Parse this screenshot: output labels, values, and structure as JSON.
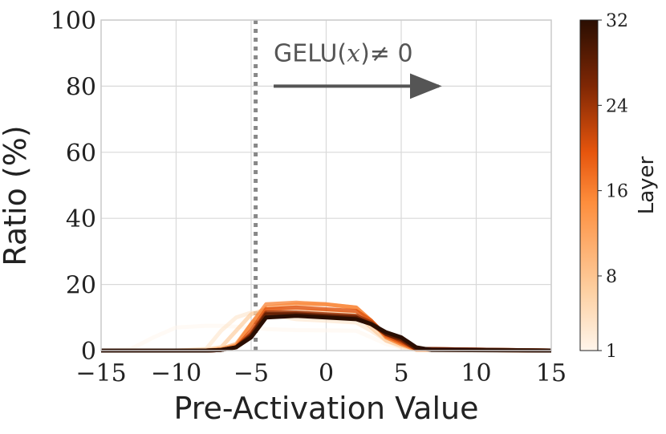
{
  "chart_data": {
    "type": "line",
    "xlabel": "Pre-Activation Value",
    "ylabel": "Ratio (%)",
    "xlim": [
      -15,
      15
    ],
    "ylim": [
      0,
      100
    ],
    "xticks": [
      -15,
      -10,
      -5,
      0,
      5,
      10,
      15
    ],
    "xtick_labels": [
      "−15",
      "−10",
      "−5",
      "0",
      "5",
      "10",
      "15"
    ],
    "yticks": [
      0,
      20,
      40,
      60,
      80,
      100
    ],
    "ytick_labels": [
      "0",
      "20",
      "40",
      "60",
      "80",
      "100"
    ],
    "grid": true,
    "threshold_line": {
      "x": -4.7,
      "style": "dotted",
      "color": "#888888"
    },
    "annotation": {
      "label_text": "GELU(",
      "label_var": "x",
      "label_rest": ")≠ 0",
      "arrow_from_x": -3.5,
      "arrow_to_x": 7.5,
      "arrow_y": 80,
      "color": "#555555"
    },
    "colorbar": {
      "label": "Layer",
      "min": 1,
      "max": 32,
      "ticks": [
        1,
        8,
        16,
        24,
        32
      ],
      "tick_labels": [
        "1",
        "8",
        "16",
        "24",
        "32"
      ],
      "colormap": "Oranges-to-dark",
      "color_stops": [
        "#fff5eb",
        "#fdd0a2",
        "#fd8d3c",
        "#e6550d",
        "#7f2704",
        "#2a0e02"
      ]
    },
    "series": [
      {
        "layer": 1,
        "x": [
          -15,
          -13,
          -11.5,
          -10,
          -8,
          -7,
          -6,
          -5,
          -4,
          -2,
          0,
          2,
          3,
          4,
          5,
          6,
          8,
          15
        ],
        "y": [
          0,
          0.5,
          4,
          7,
          7.5,
          7.5,
          7.2,
          7,
          6.5,
          6.2,
          6.1,
          6,
          4,
          2,
          0.8,
          0.2,
          0,
          0
        ]
      },
      {
        "layer": 4,
        "x": [
          -15,
          -10,
          -8,
          -7,
          -6,
          -5,
          -4,
          -2,
          0,
          2,
          3,
          4,
          5,
          6,
          15
        ],
        "y": [
          0,
          0,
          0.5,
          6,
          10,
          11.5,
          11,
          9.5,
          9,
          8.5,
          6,
          3,
          1,
          0.2,
          0
        ]
      },
      {
        "layer": 8,
        "x": [
          -15,
          -10,
          -8,
          -7,
          -6,
          -5,
          -4,
          -2,
          0,
          2,
          3,
          4,
          5,
          6,
          15
        ],
        "y": [
          0,
          0,
          0.3,
          1,
          6,
          11,
          12.5,
          12,
          12,
          11,
          7,
          3,
          1.5,
          0.3,
          0
        ]
      },
      {
        "layer": 12,
        "x": [
          -15,
          -8,
          -7,
          -6,
          -5,
          -4,
          -2,
          0,
          2,
          3,
          4,
          5,
          6,
          15
        ],
        "y": [
          0,
          0,
          0.5,
          2,
          8,
          13,
          14,
          14,
          13,
          9,
          4,
          2,
          0.3,
          0
        ]
      },
      {
        "layer": 16,
        "x": [
          -15,
          -8,
          -7,
          -6,
          -5,
          -4,
          -2,
          0,
          2,
          3,
          4,
          5,
          6,
          15
        ],
        "y": [
          0,
          0,
          0.3,
          1.5,
          8,
          14,
          14.5,
          14,
          13,
          9,
          4,
          2,
          0.3,
          0
        ]
      },
      {
        "layer": 20,
        "x": [
          -15,
          -8,
          -7,
          -6,
          -5,
          -4,
          -2,
          0,
          2,
          3,
          4,
          5,
          6,
          15
        ],
        "y": [
          0,
          0,
          0.2,
          1,
          6,
          12.5,
          13,
          12.5,
          12,
          9,
          4.5,
          2.5,
          0.5,
          0
        ]
      },
      {
        "layer": 24,
        "x": [
          -15,
          -8,
          -7,
          -6,
          -5,
          -4,
          -2,
          0,
          2,
          3,
          4,
          5,
          6,
          15
        ],
        "y": [
          0,
          0,
          0.2,
          1,
          5,
          11.5,
          11.5,
          11,
          10.5,
          8.5,
          5,
          3,
          0.5,
          0
        ]
      },
      {
        "layer": 28,
        "x": [
          -15,
          -8,
          -7,
          -6,
          -5,
          -4,
          -2,
          0,
          2,
          3,
          4,
          5,
          6,
          15
        ],
        "y": [
          0,
          0,
          0.2,
          1,
          4.5,
          11,
          11,
          10.5,
          10,
          8,
          5,
          3.5,
          0.5,
          0
        ]
      },
      {
        "layer": 32,
        "x": [
          -15,
          -8,
          -7,
          -6,
          -5,
          -4,
          -2,
          0,
          2,
          3,
          4,
          5,
          6,
          7,
          15
        ],
        "y": [
          0,
          0,
          0.2,
          1,
          4,
          10,
          10.5,
          10,
          9.5,
          8,
          5.5,
          4,
          1,
          0.2,
          0
        ]
      }
    ]
  }
}
